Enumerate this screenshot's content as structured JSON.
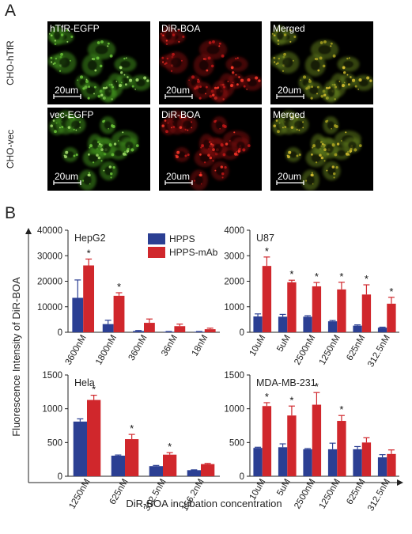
{
  "panel_a": {
    "letter": "A",
    "rows": [
      {
        "row_label": "CHO-hTfR",
        "images": [
          {
            "label": "hTfR-EGFP",
            "scale": "20um",
            "channel": "green"
          },
          {
            "label": "DiR-BOA",
            "scale": "20um",
            "channel": "red"
          },
          {
            "label": "Merged",
            "scale": "20um",
            "channel": "merged"
          }
        ]
      },
      {
        "row_label": "CHO-vec",
        "images": [
          {
            "label": "vec-EGFP",
            "scale": "20um",
            "channel": "green"
          },
          {
            "label": "DiR-BOA",
            "scale": "20um",
            "channel": "red"
          },
          {
            "label": "Merged",
            "scale": "20um",
            "channel": "merged"
          }
        ]
      }
    ]
  },
  "panel_b": {
    "letter": "B",
    "ylabel": "Fluorescence Intensity of DiR-BOA",
    "xlabel": "DiR-BOA incubation concentration",
    "legend": [
      {
        "name": "HPPS",
        "color": "#2b3f93"
      },
      {
        "name": "HPPS-mAb",
        "color": "#d0272c"
      }
    ]
  },
  "chart_data": [
    {
      "type": "bar",
      "title": "HepG2",
      "categories": [
        "3600nM",
        "1800nM",
        "360nM",
        "36nM",
        "18nM"
      ],
      "ylim": [
        0,
        40000
      ],
      "yticks": [
        0,
        10000,
        20000,
        30000,
        40000
      ],
      "series": [
        {
          "name": "HPPS",
          "values": [
            13500,
            3200,
            500,
            200,
            200
          ],
          "errors": [
            7000,
            1500,
            200,
            100,
            100
          ]
        },
        {
          "name": "HPPS-mAb",
          "values": [
            26200,
            14300,
            3700,
            2400,
            1200
          ],
          "errors": [
            2500,
            1200,
            1500,
            800,
            400
          ]
        }
      ],
      "significant": [
        true,
        true,
        false,
        false,
        false
      ]
    },
    {
      "type": "bar",
      "title": "U87",
      "categories": [
        "10uM",
        "5uM",
        "2500nM",
        "1250nM",
        "625nM",
        "312.5nM"
      ],
      "ylim": [
        0,
        4000
      ],
      "yticks": [
        0,
        1000,
        2000,
        3000,
        4000
      ],
      "series": [
        {
          "name": "HPPS",
          "values": [
            620,
            610,
            610,
            430,
            260,
            180
          ],
          "errors": [
            100,
            90,
            40,
            30,
            30,
            20
          ]
        },
        {
          "name": "HPPS-mAb",
          "values": [
            2600,
            1960,
            1800,
            1680,
            1480,
            1120
          ],
          "errors": [
            350,
            80,
            150,
            280,
            380,
            250
          ]
        }
      ],
      "significant": [
        true,
        true,
        true,
        true,
        true,
        true
      ]
    },
    {
      "type": "bar",
      "title": "Hela",
      "categories": [
        "1250nM",
        "625nM",
        "312.5nM",
        "156.2nM"
      ],
      "ylim": [
        0,
        1500
      ],
      "yticks": [
        0,
        500,
        1000,
        1500
      ],
      "series": [
        {
          "name": "HPPS",
          "values": [
            810,
            305,
            150,
            90
          ],
          "errors": [
            40,
            10,
            10,
            5
          ]
        },
        {
          "name": "HPPS-mAb",
          "values": [
            1130,
            550,
            320,
            180
          ],
          "errors": [
            70,
            70,
            30,
            10
          ]
        }
      ],
      "significant": [
        true,
        true,
        true,
        false
      ]
    },
    {
      "type": "bar",
      "title": "MDA-MB-231",
      "categories": [
        "10uM",
        "5uM",
        "2500nM",
        "1250nM",
        "625nM",
        "312.5nM"
      ],
      "ylim": [
        0,
        1500
      ],
      "yticks": [
        0,
        500,
        1000,
        1500
      ],
      "series": [
        {
          "name": "HPPS",
          "values": [
            420,
            430,
            400,
            400,
            400,
            280
          ],
          "errors": [
            10,
            50,
            10,
            90,
            40,
            40
          ]
        },
        {
          "name": "HPPS-mAb",
          "values": [
            1040,
            900,
            1060,
            820,
            500,
            330
          ],
          "errors": [
            50,
            140,
            180,
            80,
            70,
            60
          ]
        }
      ],
      "significant": [
        true,
        true,
        true,
        true,
        false,
        false
      ]
    }
  ]
}
